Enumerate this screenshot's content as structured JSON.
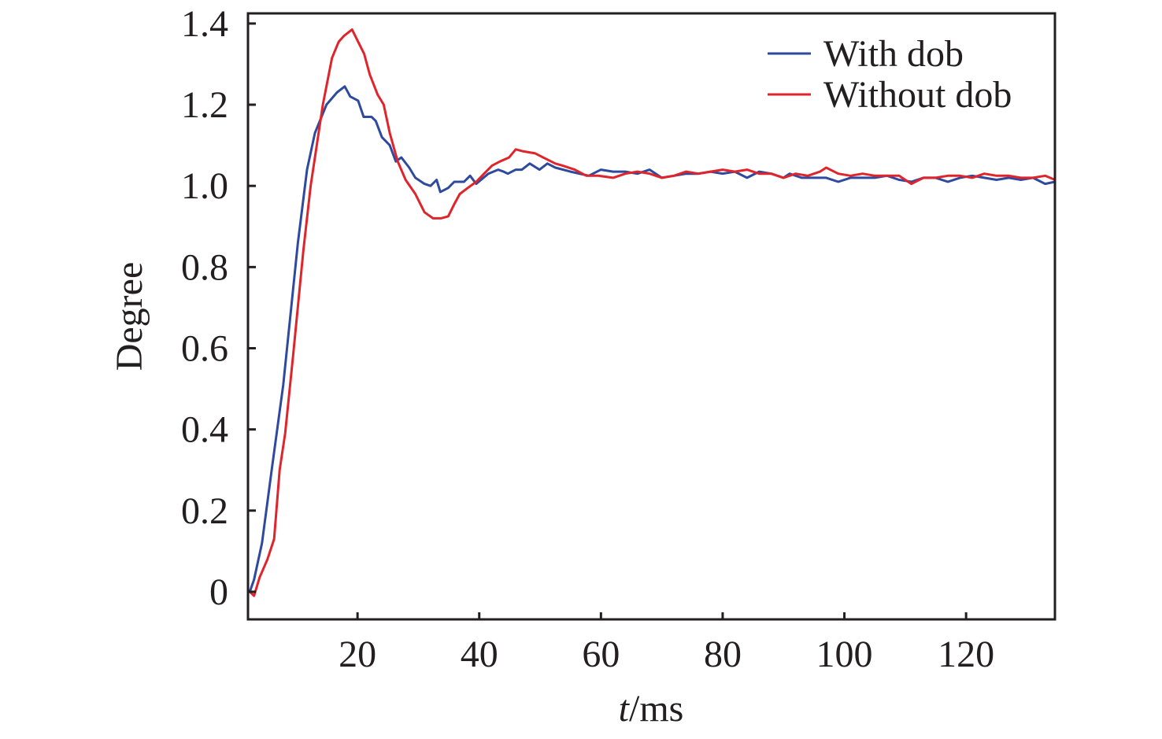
{
  "chart_data": {
    "type": "line",
    "title": "",
    "xlabel_italic": "t",
    "xlabel_rest": "/ms",
    "ylabel": "Degree",
    "xlim": [
      2,
      134.6
    ],
    "ylim": [
      -0.068,
      1.425
    ],
    "xticks": [
      20,
      40,
      60,
      80,
      100,
      120
    ],
    "xtick_labels": [
      "20",
      "40",
      "60",
      "80",
      "100",
      "120"
    ],
    "yticks": [
      0,
      0.2,
      0.4,
      0.6,
      0.8,
      1.0,
      1.2,
      1.4
    ],
    "ytick_labels": [
      "0",
      "0.2",
      "0.4",
      "0.6",
      "0.8",
      "1.0",
      "1.2",
      "1.4"
    ],
    "grid": false,
    "legend_position": "top-right",
    "series": [
      {
        "name": "With dob",
        "color": "#2e4a9e",
        "points": [
          [
            2.3,
            0
          ],
          [
            3,
            0.03
          ],
          [
            4.3,
            0.12
          ],
          [
            5.9,
            0.3
          ],
          [
            7.8,
            0.51
          ],
          [
            10.2,
            0.86
          ],
          [
            11.7,
            1.04
          ],
          [
            13,
            1.13
          ],
          [
            14.9,
            1.2
          ],
          [
            16.6,
            1.23
          ],
          [
            17.9,
            1.245
          ],
          [
            18.8,
            1.22
          ],
          [
            20.1,
            1.21
          ],
          [
            21,
            1.17
          ],
          [
            22.3,
            1.17
          ],
          [
            23,
            1.16
          ],
          [
            24,
            1.12
          ],
          [
            25.3,
            1.1
          ],
          [
            26.3,
            1.06
          ],
          [
            27.2,
            1.07
          ],
          [
            28.5,
            1.045
          ],
          [
            29.5,
            1.02
          ],
          [
            31,
            1.005
          ],
          [
            32,
            1.0
          ],
          [
            33,
            1.015
          ],
          [
            33.6,
            0.985
          ],
          [
            34.9,
            0.995
          ],
          [
            35.9,
            1.01
          ],
          [
            37.5,
            1.01
          ],
          [
            38.5,
            1.025
          ],
          [
            39.5,
            1.005
          ],
          [
            41.5,
            1.03
          ],
          [
            43.1,
            1.04
          ],
          [
            44,
            1.035
          ],
          [
            44.7,
            1.03
          ],
          [
            46,
            1.04
          ],
          [
            47,
            1.04
          ],
          [
            48.3,
            1.055
          ],
          [
            49.9,
            1.04
          ],
          [
            51.2,
            1.055
          ],
          [
            52.5,
            1.045
          ],
          [
            55,
            1.035
          ],
          [
            58,
            1.025
          ],
          [
            60,
            1.04
          ],
          [
            62,
            1.035
          ],
          [
            64,
            1.035
          ],
          [
            66,
            1.03
          ],
          [
            68,
            1.04
          ],
          [
            70,
            1.02
          ],
          [
            72,
            1.025
          ],
          [
            74,
            1.03
          ],
          [
            76,
            1.03
          ],
          [
            78,
            1.035
          ],
          [
            80,
            1.03
          ],
          [
            82,
            1.035
          ],
          [
            84,
            1.02
          ],
          [
            86,
            1.035
          ],
          [
            88,
            1.03
          ],
          [
            90,
            1.02
          ],
          [
            91,
            1.03
          ],
          [
            93,
            1.02
          ],
          [
            95,
            1.02
          ],
          [
            97,
            1.02
          ],
          [
            99,
            1.01
          ],
          [
            101,
            1.02
          ],
          [
            103,
            1.02
          ],
          [
            105,
            1.02
          ],
          [
            107,
            1.025
          ],
          [
            109,
            1.015
          ],
          [
            111,
            1.01
          ],
          [
            113,
            1.02
          ],
          [
            115,
            1.02
          ],
          [
            117,
            1.01
          ],
          [
            119,
            1.02
          ],
          [
            121,
            1.025
          ],
          [
            123,
            1.02
          ],
          [
            125,
            1.015
          ],
          [
            127,
            1.02
          ],
          [
            129,
            1.015
          ],
          [
            131,
            1.02
          ],
          [
            133,
            1.005
          ],
          [
            134.6,
            1.01
          ]
        ]
      },
      {
        "name": "Without dob",
        "color": "#e0242b",
        "points": [
          [
            2.3,
            0
          ],
          [
            3,
            -0.01
          ],
          [
            3.9,
            0.035
          ],
          [
            5.2,
            0.08
          ],
          [
            6.3,
            0.13
          ],
          [
            7.2,
            0.3
          ],
          [
            8.1,
            0.39
          ],
          [
            9.4,
            0.58
          ],
          [
            11.1,
            0.84
          ],
          [
            12.3,
            1.0
          ],
          [
            14.3,
            1.2
          ],
          [
            15.8,
            1.315
          ],
          [
            16.9,
            1.355
          ],
          [
            17.8,
            1.37
          ],
          [
            19.1,
            1.385
          ],
          [
            20.1,
            1.355
          ],
          [
            21.1,
            1.325
          ],
          [
            22,
            1.275
          ],
          [
            23.3,
            1.225
          ],
          [
            24.3,
            1.2
          ],
          [
            25.3,
            1.13
          ],
          [
            26.6,
            1.06
          ],
          [
            27.9,
            1.015
          ],
          [
            29.5,
            0.98
          ],
          [
            31,
            0.935
          ],
          [
            32.4,
            0.92
          ],
          [
            33.7,
            0.92
          ],
          [
            34.9,
            0.925
          ],
          [
            35.9,
            0.955
          ],
          [
            36.8,
            0.98
          ],
          [
            38.1,
            0.995
          ],
          [
            39.5,
            1.01
          ],
          [
            40.8,
            1.03
          ],
          [
            42.1,
            1.05
          ],
          [
            43.4,
            1.06
          ],
          [
            44.9,
            1.07
          ],
          [
            46,
            1.09
          ],
          [
            47.3,
            1.085
          ],
          [
            49.2,
            1.08
          ],
          [
            50.5,
            1.07
          ],
          [
            52.5,
            1.055
          ],
          [
            53.7,
            1.05
          ],
          [
            55.7,
            1.04
          ],
          [
            57.6,
            1.025
          ],
          [
            59.6,
            1.025
          ],
          [
            62,
            1.02
          ],
          [
            64,
            1.03
          ],
          [
            66,
            1.035
          ],
          [
            68,
            1.03
          ],
          [
            70,
            1.02
          ],
          [
            72,
            1.025
          ],
          [
            74,
            1.035
          ],
          [
            76,
            1.03
          ],
          [
            78,
            1.035
          ],
          [
            80,
            1.04
          ],
          [
            82,
            1.035
          ],
          [
            84,
            1.04
          ],
          [
            86,
            1.03
          ],
          [
            88,
            1.03
          ],
          [
            90,
            1.02
          ],
          [
            92,
            1.03
          ],
          [
            94,
            1.025
          ],
          [
            96,
            1.035
          ],
          [
            97,
            1.045
          ],
          [
            99,
            1.03
          ],
          [
            101,
            1.025
          ],
          [
            103,
            1.03
          ],
          [
            105,
            1.025
          ],
          [
            107,
            1.025
          ],
          [
            109,
            1.025
          ],
          [
            111,
            1.005
          ],
          [
            113,
            1.02
          ],
          [
            115,
            1.02
          ],
          [
            117,
            1.025
          ],
          [
            119,
            1.025
          ],
          [
            121,
            1.02
          ],
          [
            123,
            1.03
          ],
          [
            125,
            1.025
          ],
          [
            127,
            1.025
          ],
          [
            129,
            1.02
          ],
          [
            131,
            1.02
          ],
          [
            133,
            1.025
          ],
          [
            134.6,
            1.015
          ]
        ]
      }
    ]
  }
}
